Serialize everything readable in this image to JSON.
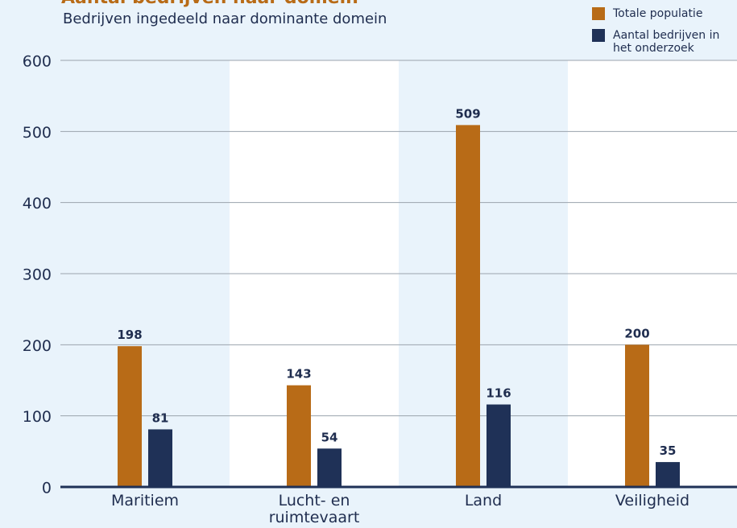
{
  "chart_data": {
    "type": "bar",
    "title": "Aantal bedrijven naar domein",
    "subtitle": "Bedrijven ingedeeld naar dominante domein",
    "categories": [
      "Maritiem",
      "Lucht- en ruimtevaart",
      "Land",
      "Veiligheid"
    ],
    "series": [
      {
        "name": "Totale populatie",
        "color": "#b86b17",
        "values": [
          198,
          143,
          509,
          200
        ]
      },
      {
        "name": "Aantal bedrijven in het onderzoek",
        "color": "#1f3157",
        "values": [
          81,
          54,
          116,
          35
        ]
      }
    ],
    "ylim": [
      0,
      600
    ],
    "yticks": [
      0,
      100,
      200,
      300,
      400,
      500,
      600
    ],
    "grid": true
  }
}
